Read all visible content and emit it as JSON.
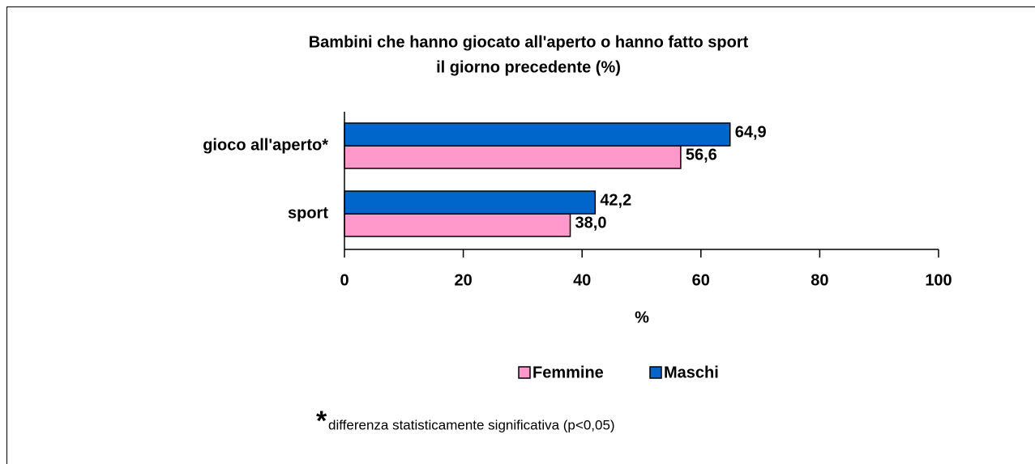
{
  "chart_data": {
    "type": "hbar",
    "title": [
      "Bambini che hanno giocato all'aperto o hanno fatto sport",
      "il giorno precedente (%)"
    ],
    "categories": [
      "gioco all'aperto*",
      "sport"
    ],
    "series": [
      {
        "name": "Femmine",
        "color": "#ff99cc",
        "values": [
          56.6,
          38.0
        ],
        "value_labels": [
          "56,6",
          "38,0"
        ]
      },
      {
        "name": "Maschi",
        "color": "#0066cc",
        "values": [
          64.9,
          42.2
        ],
        "value_labels": [
          "64,9",
          "42,2"
        ]
      }
    ],
    "xlabel": "%",
    "xlim": [
      0,
      100
    ],
    "xticks": [
      0,
      20,
      40,
      60,
      80,
      100
    ],
    "legend": "bottom",
    "footnote_mark": "*",
    "footnote": "differenza statisticamente significativa (p<0,05)"
  }
}
